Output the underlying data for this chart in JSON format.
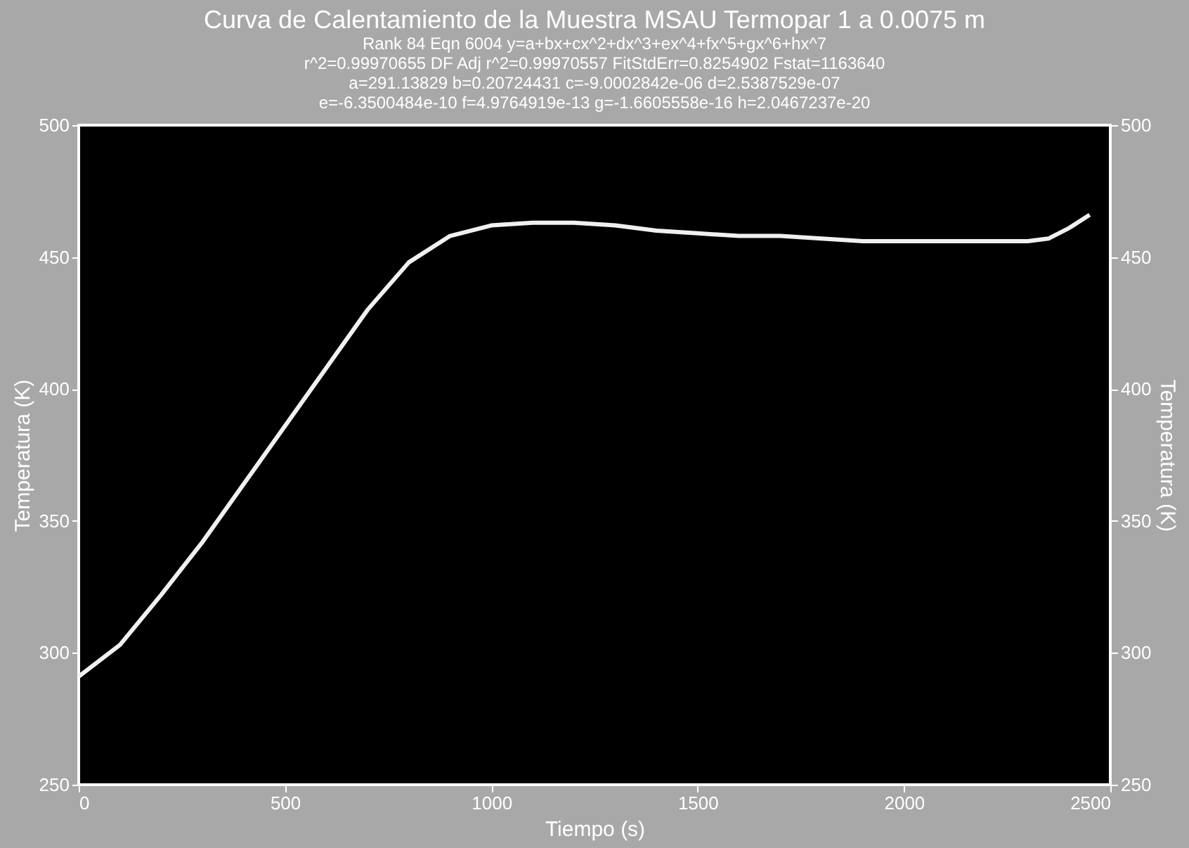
{
  "chart_data": {
    "type": "line",
    "title": "Curva de Calentamiento de la Muestra MSAU Termopar 1 a 0.0075 m",
    "subtitle": [
      "Rank 84  Eqn 6004  y=a+bx+cx^2+dx^3+ex^4+fx^5+gx^6+hx^7",
      "r^2=0.99970655  DF Adj r^2=0.99970557  FitStdErr=0.8254902  Fstat=1163640",
      "a=291.13829 b=0.20724431 c=-9.0002842e-06 d=2.5387529e-07",
      "e=-6.3500484e-10 f=4.9764919e-13 g=-1.6605558e-16 h=2.0467237e-20"
    ],
    "xlabel": "Tiempo (s)",
    "ylabel": "Temperatura (K)",
    "y2label": "Temperatura (K)",
    "x": [
      0,
      100,
      200,
      300,
      400,
      500,
      600,
      700,
      800,
      900,
      1000,
      1100,
      1200,
      1300,
      1400,
      1500,
      1600,
      1700,
      1800,
      1900,
      2000,
      2100,
      2200,
      2300,
      2350,
      2400,
      2450
    ],
    "series": [
      {
        "color": "#f0f0f0",
        "values": [
          291,
          303,
          322,
          342,
          364,
          386,
          408,
          430,
          448,
          458,
          462,
          463,
          463,
          462,
          460,
          459,
          458,
          458,
          457,
          456,
          456,
          456,
          456,
          456,
          457,
          461,
          466
        ]
      }
    ],
    "xlim": [
      0,
      2500
    ],
    "xticks": [
      0,
      500,
      1000,
      1500,
      2000,
      2500
    ],
    "ylim": [
      250,
      500
    ],
    "yticks": [
      250,
      300,
      350,
      400,
      450,
      500
    ],
    "y2lim": [
      250,
      500
    ],
    "y2ticks": [
      250,
      300,
      350,
      400,
      450,
      500
    ],
    "grid": false,
    "marker": "none",
    "line_style": "solid"
  }
}
